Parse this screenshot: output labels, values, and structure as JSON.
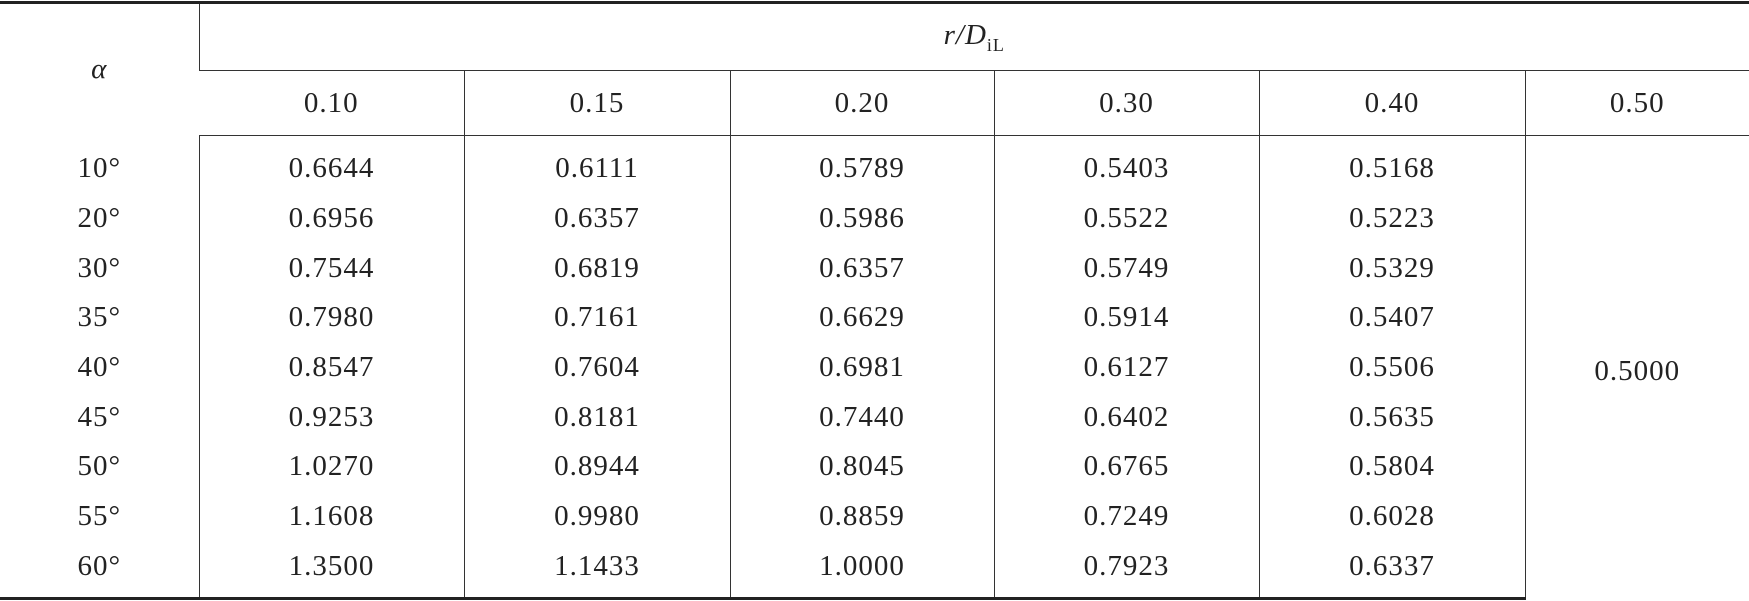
{
  "table": {
    "corner": "α",
    "group": {
      "main": "r/D",
      "sub": "iL"
    },
    "columns": [
      "0.10",
      "0.15",
      "0.20",
      "0.30",
      "0.40",
      "0.50"
    ],
    "rows": [
      {
        "alpha": "10°",
        "values": [
          "0.6644",
          "0.6111",
          "0.5789",
          "0.5403",
          "0.5168"
        ]
      },
      {
        "alpha": "20°",
        "values": [
          "0.6956",
          "0.6357",
          "0.5986",
          "0.5522",
          "0.5223"
        ]
      },
      {
        "alpha": "30°",
        "values": [
          "0.7544",
          "0.6819",
          "0.6357",
          "0.5749",
          "0.5329"
        ]
      },
      {
        "alpha": "35°",
        "values": [
          "0.7980",
          "0.7161",
          "0.6629",
          "0.5914",
          "0.5407"
        ]
      },
      {
        "alpha": "40°",
        "values": [
          "0.8547",
          "0.7604",
          "0.6981",
          "0.6127",
          "0.5506"
        ]
      },
      {
        "alpha": "45°",
        "values": [
          "0.9253",
          "0.8181",
          "0.7440",
          "0.6402",
          "0.5635"
        ]
      },
      {
        "alpha": "50°",
        "values": [
          "1.0270",
          "0.8944",
          "0.8045",
          "0.6765",
          "0.5804"
        ]
      },
      {
        "alpha": "55°",
        "values": [
          "1.1608",
          "0.9980",
          "0.8859",
          "0.7249",
          "0.6028"
        ]
      },
      {
        "alpha": "60°",
        "values": [
          "1.3500",
          "1.1433",
          "1.0000",
          "0.7923",
          "0.6337"
        ]
      }
    ],
    "merged_value": "0.5000"
  }
}
